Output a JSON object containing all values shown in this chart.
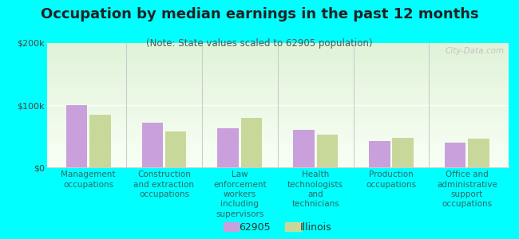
{
  "title": "Occupation by median earnings in the past 12 months",
  "subtitle": "(Note: State values scaled to 62905 population)",
  "categories": [
    "Management\noccupations",
    "Construction\nand extraction\noccupations",
    "Law\nenforcement\nworkers\nincluding\nsupervisors",
    "Health\ntechnologists\nand\ntechnicians",
    "Production\noccupations",
    "Office and\nadministrative\nsupport\noccupations"
  ],
  "values_62905": [
    100000,
    72000,
    63000,
    60000,
    42000,
    40000
  ],
  "values_illinois": [
    85000,
    58000,
    80000,
    53000,
    48000,
    46000
  ],
  "color_62905": "#c9a0dc",
  "color_illinois": "#c8d89a",
  "ylim": [
    0,
    200000
  ],
  "yticks": [
    0,
    100000,
    200000
  ],
  "ytick_labels": [
    "$0",
    "$100k",
    "$200k"
  ],
  "fig_background": "#00ffff",
  "legend_label_62905": "62905",
  "legend_label_illinois": "Illinois",
  "watermark": "City-Data.com",
  "title_fontsize": 13,
  "subtitle_fontsize": 8.5,
  "tick_label_fontsize": 7.5,
  "ytick_fontsize": 8
}
